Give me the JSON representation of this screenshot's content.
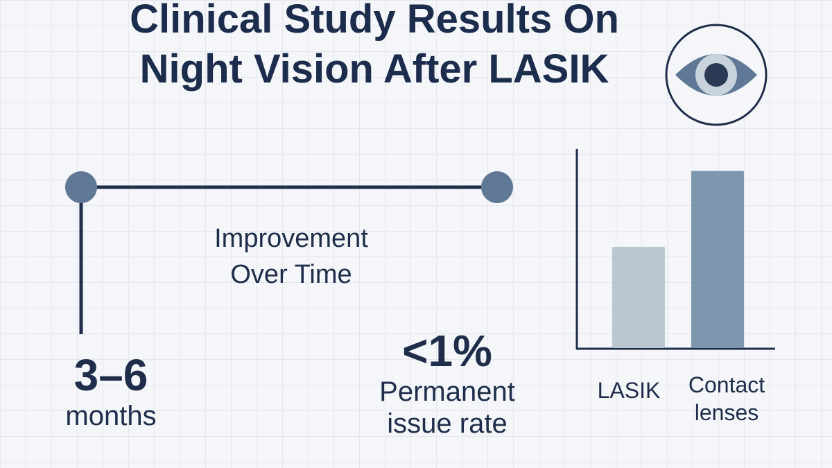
{
  "title": {
    "line1": "Clinical Study Results On",
    "line2": "Night Vision After LASIK"
  },
  "icon": {
    "name": "eye-icon",
    "colors": {
      "ring": "#1f2d4a",
      "eye": "#5f7896",
      "iris": "#c9d3de",
      "pupil": "#2a3a55"
    }
  },
  "timeline": {
    "label_line1": "Improvement",
    "label_line2": "Over Time",
    "color": "#1f2d4a",
    "dot_color": "#5f7896"
  },
  "stats": [
    {
      "value": "3–6",
      "label": "months"
    },
    {
      "value": "<1%",
      "label_line1": "Permanent",
      "label_line2": "issue rate"
    }
  ],
  "chart_data": {
    "type": "bar",
    "categories": [
      {
        "line1": "LASIK",
        "line2": ""
      },
      {
        "line1": "Contact",
        "line2": "lenses"
      }
    ],
    "values": [
      40,
      70
    ],
    "ylim": [
      0,
      80
    ],
    "colors": [
      "#b9c7d3",
      "#7d97ae"
    ],
    "grid": false,
    "title": "",
    "xlabel": "",
    "ylabel": ""
  }
}
